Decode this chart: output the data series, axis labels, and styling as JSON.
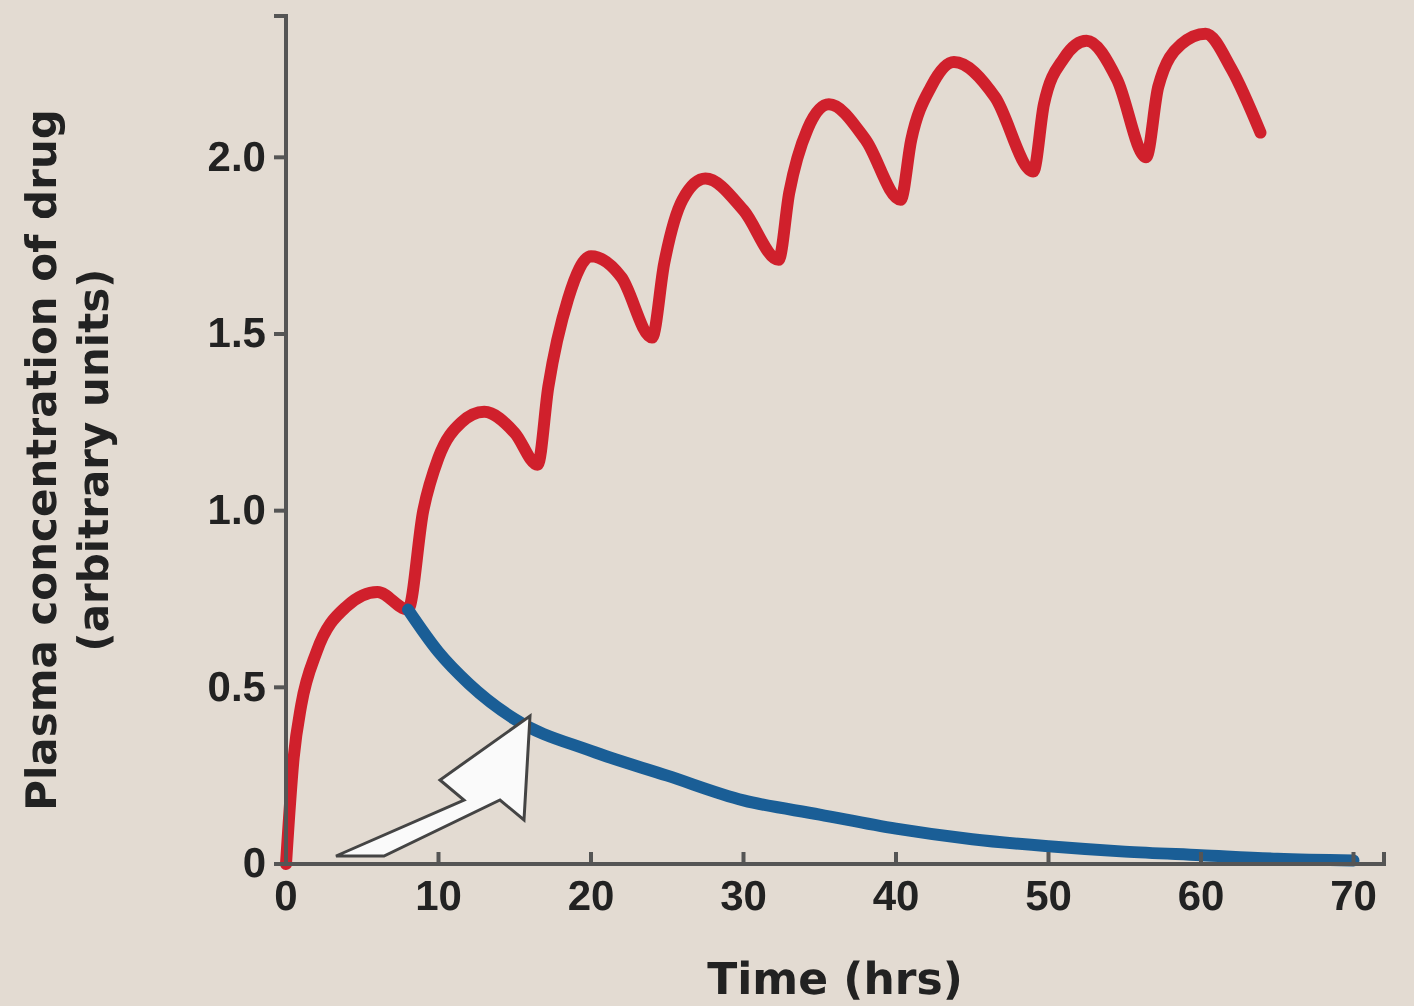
{
  "chart_data": {
    "type": "line",
    "xlabel": "Time (hrs)",
    "ylabel": "Plasma concentration of drug\n(arbitrary units)",
    "xlim": [
      0,
      72
    ],
    "ylim": [
      0,
      2.4
    ],
    "xticks": [
      0,
      10,
      20,
      30,
      40,
      50,
      60,
      70
    ],
    "yticks": [
      0,
      {
        "value": 0.5,
        "label": "0.5"
      },
      {
        "value": 1,
        "label": "1.0"
      },
      {
        "value": 1.5,
        "label": "1.5"
      },
      {
        "value": 2,
        "label": "2.0"
      }
    ],
    "grid": false,
    "marker": "none",
    "line_style": "solid",
    "series": [
      {
        "color": "#d0202c",
        "x": [
          0,
          0.5,
          1,
          2,
          4,
          6,
          8,
          9,
          10,
          11.5,
          13,
          15,
          16.5,
          17.2,
          18.5,
          20,
          22,
          24,
          24.8,
          26,
          27.5,
          30,
          32.3,
          33,
          34.2,
          35.6,
          38,
          40.3,
          41,
          42.3,
          43.8,
          46.5,
          49,
          49.7,
          51,
          52.5,
          54.5,
          56.4,
          57.2,
          58.7,
          60.3,
          62,
          63.9
        ],
        "values": [
          0,
          0.3,
          0.45,
          0.6,
          0.73,
          0.77,
          0.72,
          1.0,
          1.15,
          1.25,
          1.28,
          1.22,
          1.13,
          1.35,
          1.6,
          1.72,
          1.66,
          1.49,
          1.7,
          1.88,
          1.94,
          1.85,
          1.71,
          1.9,
          2.08,
          2.15,
          2.05,
          1.88,
          2.05,
          2.2,
          2.27,
          2.17,
          1.96,
          2.15,
          2.28,
          2.33,
          2.22,
          2.0,
          2.2,
          2.32,
          2.35,
          2.25,
          2.07
        ]
      },
      {
        "color": "#1a5e96",
        "x": [
          8,
          10,
          12,
          15,
          20,
          25,
          30,
          35,
          40,
          45,
          50,
          55,
          60,
          65,
          70
        ],
        "values": [
          0.72,
          0.6,
          0.51,
          0.41,
          0.32,
          0.25,
          0.18,
          0.14,
          0.1,
          0.07,
          0.05,
          0.035,
          0.025,
          0.015,
          0.01
        ]
      }
    ]
  }
}
